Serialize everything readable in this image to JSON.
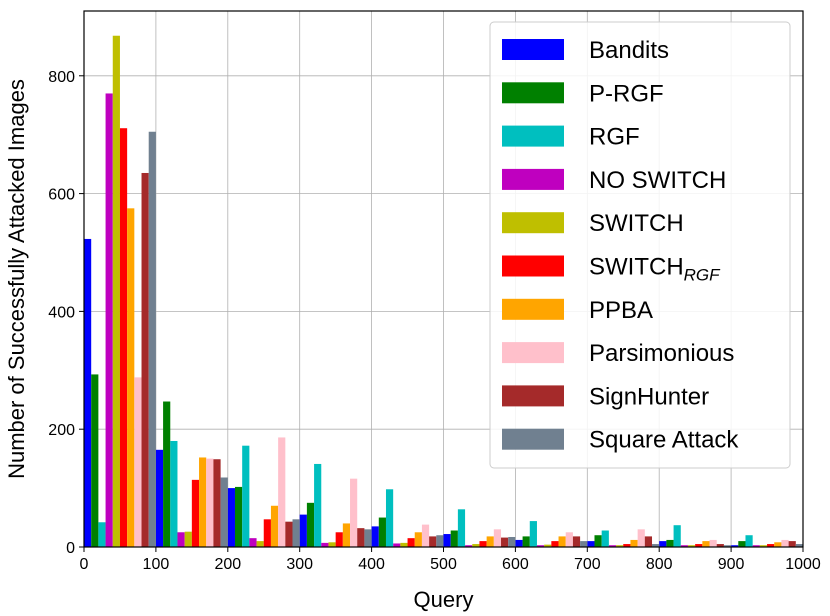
{
  "chart_data": {
    "type": "bar",
    "title": "",
    "xlabel": "Query",
    "ylabel": "Number of Successfully Attacked Images",
    "xlim": [
      0,
      1000
    ],
    "ylim": [
      0,
      910
    ],
    "grid": true,
    "legend_position": "top-right",
    "xticks": [
      "0",
      "100",
      "200",
      "300",
      "400",
      "500",
      "600",
      "700",
      "800",
      "900",
      "1000"
    ],
    "yticks": [
      "0",
      "200",
      "400",
      "600",
      "800"
    ],
    "categories": [
      "0-100",
      "100-200",
      "200-300",
      "300-400",
      "400-500",
      "500-600",
      "600-700",
      "700-800",
      "800-900",
      "900-1000"
    ],
    "series": [
      {
        "name": "Bandits",
        "color": "#0000ff",
        "values": [
          523,
          165,
          100,
          55,
          35,
          22,
          12,
          10,
          10,
          3
        ]
      },
      {
        "name": "P-RGF",
        "color": "#008000",
        "values": [
          293,
          247,
          102,
          75,
          50,
          28,
          18,
          20,
          12,
          10
        ]
      },
      {
        "name": "RGF",
        "color": "#00bfbf",
        "values": [
          42,
          180,
          172,
          141,
          98,
          64,
          44,
          28,
          37,
          20
        ]
      },
      {
        "name": "NO SWITCH",
        "color": "#bf00bf",
        "values": [
          770,
          25,
          15,
          7,
          6,
          3,
          3,
          3,
          3,
          3
        ]
      },
      {
        "name": "SWITCH",
        "color": "#bfbf00",
        "values": [
          868,
          26,
          10,
          8,
          7,
          5,
          4,
          3,
          3,
          3
        ]
      },
      {
        "name": "SWITCH",
        "name_sub": "RGF",
        "color": "#ff0000",
        "values": [
          711,
          114,
          47,
          25,
          15,
          10,
          10,
          5,
          5,
          5
        ]
      },
      {
        "name": "PPBA",
        "color": "#ffa500",
        "values": [
          575,
          152,
          70,
          40,
          25,
          18,
          18,
          12,
          10,
          8
        ]
      },
      {
        "name": "Parsimonious",
        "color": "#ffc0cb",
        "values": [
          288,
          150,
          186,
          116,
          38,
          30,
          25,
          30,
          12,
          12
        ]
      },
      {
        "name": "SignHunter",
        "color": "#a52a2a",
        "values": [
          635,
          149,
          43,
          32,
          18,
          16,
          18,
          18,
          5,
          10
        ]
      },
      {
        "name": "Square Attack",
        "color": "#708090",
        "values": [
          705,
          118,
          47,
          30,
          20,
          17,
          10,
          5,
          3,
          5
        ]
      }
    ]
  }
}
